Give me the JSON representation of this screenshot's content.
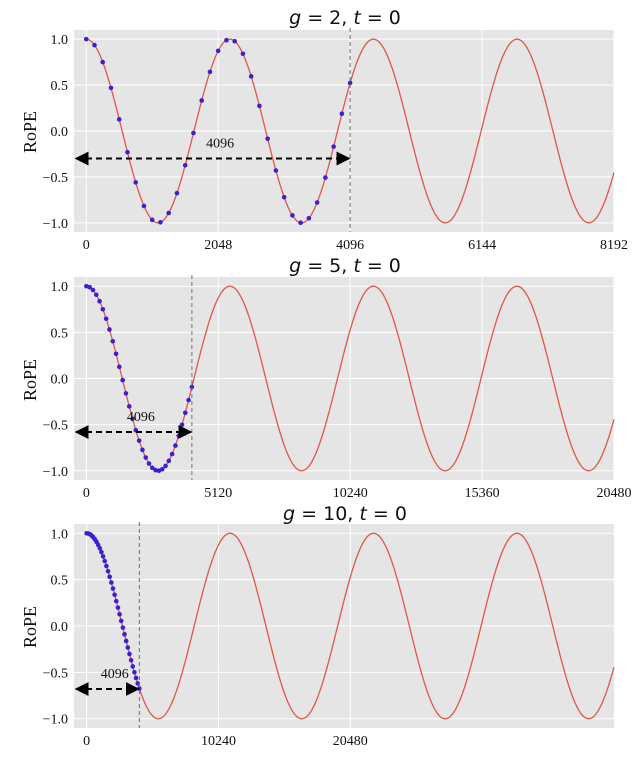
{
  "chart_data": [
    {
      "type": "line",
      "title_var1": "g",
      "title_val1": "2",
      "title_var2": "t",
      "title_val2": "0",
      "ylabel": "RoPE",
      "xlim": [
        -190,
        8192
      ],
      "ylim": [
        -1.1,
        1.1
      ],
      "xticks": [
        0,
        2048,
        4096,
        6144,
        8192
      ],
      "yticks": [
        1.0,
        0.5,
        0.0,
        -0.5,
        -1.0
      ],
      "ytick_labels": [
        "1.0",
        "0.5",
        "0.0",
        "−0.5",
        "−1.0"
      ],
      "period": 2229,
      "curve_range": [
        0,
        8192
      ],
      "dot_step": 128,
      "dot_range": [
        0,
        4096
      ],
      "context_line_x": 4096,
      "arrow_y": -0.3,
      "arrow_label": "4096",
      "grid": true
    },
    {
      "type": "line",
      "title_var1": "g",
      "title_val1": "5",
      "title_var2": "t",
      "title_val2": "0",
      "ylabel": "RoPE",
      "xlim": [
        -480,
        20480
      ],
      "ylim": [
        -1.1,
        1.1
      ],
      "xticks": [
        0,
        5120,
        10240,
        15360,
        20480
      ],
      "yticks": [
        1.0,
        0.5,
        0.0,
        -0.5,
        -1.0
      ],
      "ytick_labels": [
        "1.0",
        "0.5",
        "0.0",
        "−0.5",
        "−1.0"
      ],
      "period": 5570,
      "curve_range": [
        0,
        20480
      ],
      "dot_step": 128,
      "dot_range": [
        0,
        4096
      ],
      "context_line_x": 4096,
      "arrow_y": -0.58,
      "arrow_label": "4096",
      "grid": true
    },
    {
      "type": "line",
      "title_var1": "g",
      "title_val1": "10",
      "title_var2": "t",
      "title_val2": "0",
      "ylabel": "RoPE",
      "xlim": [
        -980,
        40960
      ],
      "ylim": [
        -1.1,
        1.1
      ],
      "xticks": [
        0,
        10240,
        20480
      ],
      "yticks": [
        1.0,
        0.5,
        0.0,
        -0.5,
        -1.0
      ],
      "ytick_labels": [
        "1.0",
        "0.5",
        "0.0",
        "−0.5",
        "−1.0"
      ],
      "period": 11140,
      "curve_range": [
        0,
        40960
      ],
      "dot_step": 128,
      "dot_range": [
        0,
        4096
      ],
      "context_line_x": 4096,
      "arrow_y": -0.68,
      "arrow_label": "4096",
      "grid": true
    }
  ],
  "colors": {
    "plot_bg": "#e5e5e5",
    "grid": "#ffffff",
    "curve": "#e0564a",
    "dots": "#3a1fd6",
    "vline": "#707070",
    "arrow": "#000000"
  }
}
